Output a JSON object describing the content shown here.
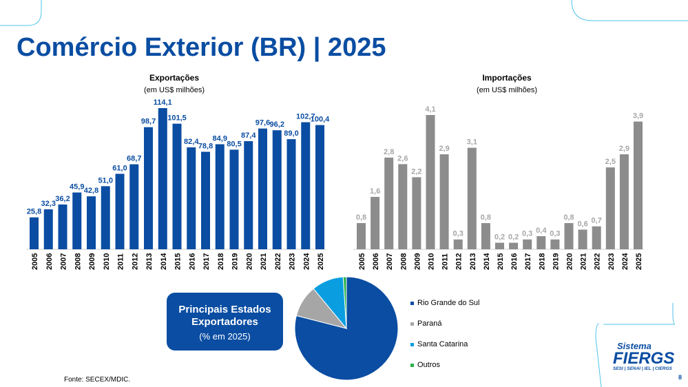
{
  "title": "Comércio Exterior (BR) | 2025",
  "chart_data": [
    {
      "type": "bar",
      "title": "Exportações",
      "subtitle": "(em US$ milhões)",
      "categories": [
        "2005",
        "2006",
        "2007",
        "2008",
        "2009",
        "2010",
        "2011",
        "2012",
        "2013",
        "2014",
        "2015",
        "2016",
        "2017",
        "2018",
        "2019",
        "2020",
        "2021",
        "2022",
        "2023",
        "2024",
        "2025"
      ],
      "values": [
        25.8,
        32.3,
        36.2,
        45.9,
        42.8,
        51.0,
        61.0,
        68.7,
        98.7,
        114.1,
        101.5,
        82.4,
        78.8,
        84.9,
        80.5,
        87.4,
        97.6,
        96.2,
        89.0,
        102.7,
        100.4
      ],
      "labels": [
        "25,8",
        "32,3",
        "36,2",
        "45,9",
        "42,8",
        "51,0",
        "61,0",
        "68,7",
        "98,7",
        "114,1",
        "101,5",
        "82,4",
        "78,8",
        "84,9",
        "80,5",
        "87,4",
        "97,6",
        "96,2",
        "89,0",
        "102,7",
        "100,4"
      ],
      "color": "#0a4da2"
    },
    {
      "type": "bar",
      "title": "Importações",
      "subtitle": "(em US$ milhões)",
      "categories": [
        "2005",
        "2006",
        "2007",
        "2008",
        "2009",
        "2010",
        "2011",
        "2012",
        "2013",
        "2014",
        "2015",
        "2016",
        "2017",
        "2018",
        "2019",
        "2020",
        "2021",
        "2022",
        "2023",
        "2024",
        "2025"
      ],
      "values": [
        0.8,
        1.6,
        2.8,
        2.6,
        2.2,
        4.1,
        2.9,
        0.3,
        3.1,
        0.8,
        0.2,
        0.2,
        0.3,
        0.4,
        0.3,
        0.8,
        0.6,
        0.7,
        2.5,
        2.9,
        3.9
      ],
      "labels": [
        "0,8",
        "1,6",
        "2,8",
        "2,6",
        "2,2",
        "4,1",
        "2,9",
        "0,3",
        "3,1",
        "0,8",
        "0,2",
        "0,2",
        "0,3",
        "0,4",
        "0,3",
        "0,8",
        "0,6",
        "0,7",
        "2,5",
        "2,9",
        "3,9"
      ],
      "color": "#8c8c8c"
    },
    {
      "type": "pie",
      "title": "Principais Estados Exportadores",
      "subtitle": "(% em 2025)",
      "legend": "right",
      "slices": [
        {
          "name": "Rio Grande do Sul",
          "value": 79,
          "color": "#0a4da2"
        },
        {
          "name": "Paraná",
          "value": 10,
          "color": "#a6a6a6"
        },
        {
          "name": "Santa Catarina",
          "value": 10,
          "color": "#0a9ee0"
        },
        {
          "name": "Outros",
          "value": 1,
          "color": "#2bb34a"
        }
      ]
    }
  ],
  "box": {
    "line1": "Principais Estados",
    "line2": "Exportadores",
    "line3": "(% em 2025)"
  },
  "source": "Fonte: SECEX/MDIC.",
  "logo": {
    "top": "Sistema",
    "main": "FIERGS",
    "sub": "SESI | SENAI | IEL | CIERGS"
  },
  "page": "8"
}
